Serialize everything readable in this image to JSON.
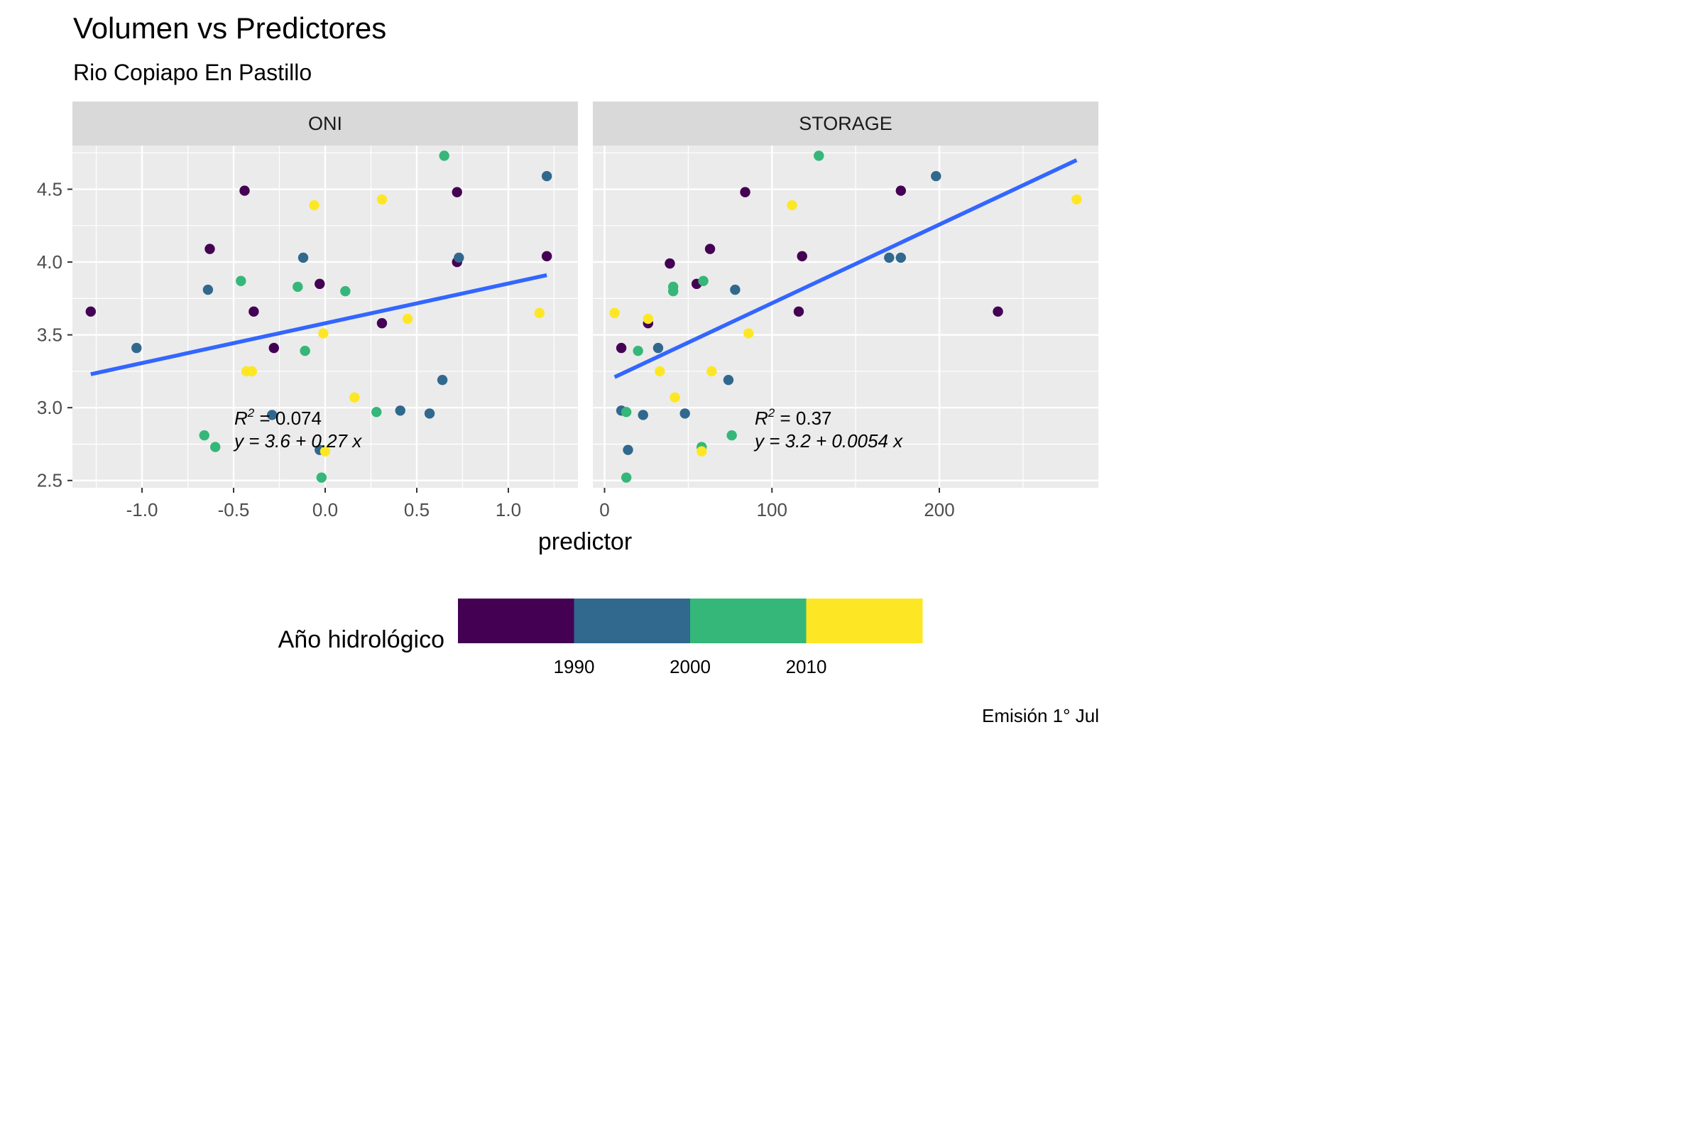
{
  "title": "Volumen vs Predictores",
  "subtitle": "Rio Copiapo En Pastillo",
  "caption": "Emisión 1° Jul",
  "chart_data": {
    "type": "scatter",
    "xlabel": "predictor",
    "ylabel": "",
    "legend": {
      "title": "Año hidrológico",
      "placement": "bottom",
      "breaks": [
        "1990",
        "2000",
        "2010"
      ],
      "colors": [
        "#440154",
        "#31688E",
        "#35B779",
        "#FDE725"
      ]
    },
    "fit_color": "#3366FF",
    "ylim": [
      2.45,
      4.8
    ],
    "yticks": [
      "2.5",
      "3.0",
      "3.5",
      "4.0",
      "4.5"
    ],
    "panels": [
      {
        "name": "ONI",
        "xlim": [
          -1.38,
          1.38
        ],
        "xticks": [
          "-1.0",
          "-0.5",
          "0.0",
          "0.5",
          "1.0"
        ],
        "fit": {
          "x": [
            -1.28,
            1.21
          ],
          "y": [
            3.23,
            3.91
          ]
        },
        "annotation": {
          "r2_label": "R",
          "r2_sup": "2",
          "r2_value": " = 0.074",
          "eq": "y = 3.6 + 0.27 x"
        },
        "points": [
          {
            "x": -1.28,
            "y": 3.66,
            "c": 0
          },
          {
            "x": -0.63,
            "y": 4.09,
            "c": 0
          },
          {
            "x": -0.44,
            "y": 4.49,
            "c": 0
          },
          {
            "x": -0.39,
            "y": 3.66,
            "c": 0
          },
          {
            "x": -0.28,
            "y": 3.41,
            "c": 0
          },
          {
            "x": -0.03,
            "y": 3.85,
            "c": 0
          },
          {
            "x": 0.31,
            "y": 3.58,
            "c": 0
          },
          {
            "x": 0.72,
            "y": 4.48,
            "c": 0
          },
          {
            "x": 0.72,
            "y": 4.0,
            "c": 0
          },
          {
            "x": 1.21,
            "y": 4.04,
            "c": 0
          },
          {
            "x": -1.03,
            "y": 3.41,
            "c": 1
          },
          {
            "x": -0.64,
            "y": 3.81,
            "c": 1
          },
          {
            "x": -0.29,
            "y": 2.95,
            "c": 1
          },
          {
            "x": -0.12,
            "y": 4.03,
            "c": 1
          },
          {
            "x": -0.03,
            "y": 2.71,
            "c": 1
          },
          {
            "x": 0.41,
            "y": 2.98,
            "c": 1
          },
          {
            "x": 0.57,
            "y": 2.96,
            "c": 1
          },
          {
            "x": 0.64,
            "y": 3.19,
            "c": 1
          },
          {
            "x": 0.73,
            "y": 4.03,
            "c": 1
          },
          {
            "x": 1.21,
            "y": 4.59,
            "c": 1
          },
          {
            "x": -0.66,
            "y": 2.81,
            "c": 2
          },
          {
            "x": -0.6,
            "y": 2.73,
            "c": 2
          },
          {
            "x": -0.46,
            "y": 3.87,
            "c": 2
          },
          {
            "x": -0.15,
            "y": 3.83,
            "c": 2
          },
          {
            "x": -0.11,
            "y": 3.39,
            "c": 2
          },
          {
            "x": -0.02,
            "y": 2.52,
            "c": 2
          },
          {
            "x": 0.11,
            "y": 3.8,
            "c": 2
          },
          {
            "x": 0.28,
            "y": 2.97,
            "c": 2
          },
          {
            "x": 0.65,
            "y": 4.73,
            "c": 2
          },
          {
            "x": -0.43,
            "y": 3.25,
            "c": 3
          },
          {
            "x": -0.4,
            "y": 3.25,
            "c": 3
          },
          {
            "x": -0.06,
            "y": 4.39,
            "c": 3
          },
          {
            "x": 0.0,
            "y": 2.7,
            "c": 3
          },
          {
            "x": -0.01,
            "y": 3.51,
            "c": 3
          },
          {
            "x": 0.16,
            "y": 3.07,
            "c": 3
          },
          {
            "x": 0.31,
            "y": 4.43,
            "c": 3
          },
          {
            "x": 0.45,
            "y": 3.61,
            "c": 3
          },
          {
            "x": 1.17,
            "y": 3.65,
            "c": 3
          }
        ]
      },
      {
        "name": "STORAGE",
        "xlim": [
          -7,
          295
        ],
        "xticks": [
          "0",
          "100",
          "200"
        ],
        "fit": {
          "x": [
            6,
            282
          ],
          "y": [
            3.21,
            4.7
          ]
        },
        "annotation": {
          "r2_label": "R",
          "r2_sup": "2",
          "r2_value": " = 0.37",
          "eq": "y = 3.2 + 0.0054 x"
        },
        "points": [
          {
            "x": 10,
            "y": 3.41,
            "c": 0
          },
          {
            "x": 26,
            "y": 3.58,
            "c": 0
          },
          {
            "x": 39,
            "y": 3.99,
            "c": 0
          },
          {
            "x": 55,
            "y": 3.85,
            "c": 0
          },
          {
            "x": 63,
            "y": 4.09,
            "c": 0
          },
          {
            "x": 84,
            "y": 4.48,
            "c": 0
          },
          {
            "x": 116,
            "y": 3.66,
            "c": 0
          },
          {
            "x": 118,
            "y": 4.04,
            "c": 0
          },
          {
            "x": 177,
            "y": 4.49,
            "c": 0
          },
          {
            "x": 235,
            "y": 3.66,
            "c": 0
          },
          {
            "x": 10,
            "y": 2.98,
            "c": 1
          },
          {
            "x": 14,
            "y": 2.71,
            "c": 1
          },
          {
            "x": 23,
            "y": 2.95,
            "c": 1
          },
          {
            "x": 32,
            "y": 3.41,
            "c": 1
          },
          {
            "x": 48,
            "y": 2.96,
            "c": 1
          },
          {
            "x": 74,
            "y": 3.19,
            "c": 1
          },
          {
            "x": 78,
            "y": 3.81,
            "c": 1
          },
          {
            "x": 170,
            "y": 4.03,
            "c": 1
          },
          {
            "x": 177,
            "y": 4.03,
            "c": 1
          },
          {
            "x": 198,
            "y": 4.59,
            "c": 1
          },
          {
            "x": 13,
            "y": 2.52,
            "c": 2
          },
          {
            "x": 13,
            "y": 2.97,
            "c": 2
          },
          {
            "x": 20,
            "y": 3.39,
            "c": 2
          },
          {
            "x": 41,
            "y": 3.83,
            "c": 2
          },
          {
            "x": 41,
            "y": 3.8,
            "c": 2
          },
          {
            "x": 58,
            "y": 2.73,
            "c": 2
          },
          {
            "x": 59,
            "y": 3.87,
            "c": 2
          },
          {
            "x": 76,
            "y": 2.81,
            "c": 2
          },
          {
            "x": 128,
            "y": 4.73,
            "c": 2
          },
          {
            "x": 6,
            "y": 3.65,
            "c": 3
          },
          {
            "x": 26,
            "y": 3.61,
            "c": 3
          },
          {
            "x": 33,
            "y": 3.25,
            "c": 3
          },
          {
            "x": 42,
            "y": 3.07,
            "c": 3
          },
          {
            "x": 58,
            "y": 2.7,
            "c": 3
          },
          {
            "x": 64,
            "y": 3.25,
            "c": 3
          },
          {
            "x": 86,
            "y": 3.51,
            "c": 3
          },
          {
            "x": 112,
            "y": 4.39,
            "c": 3
          },
          {
            "x": 282,
            "y": 4.43,
            "c": 3
          }
        ]
      }
    ]
  }
}
